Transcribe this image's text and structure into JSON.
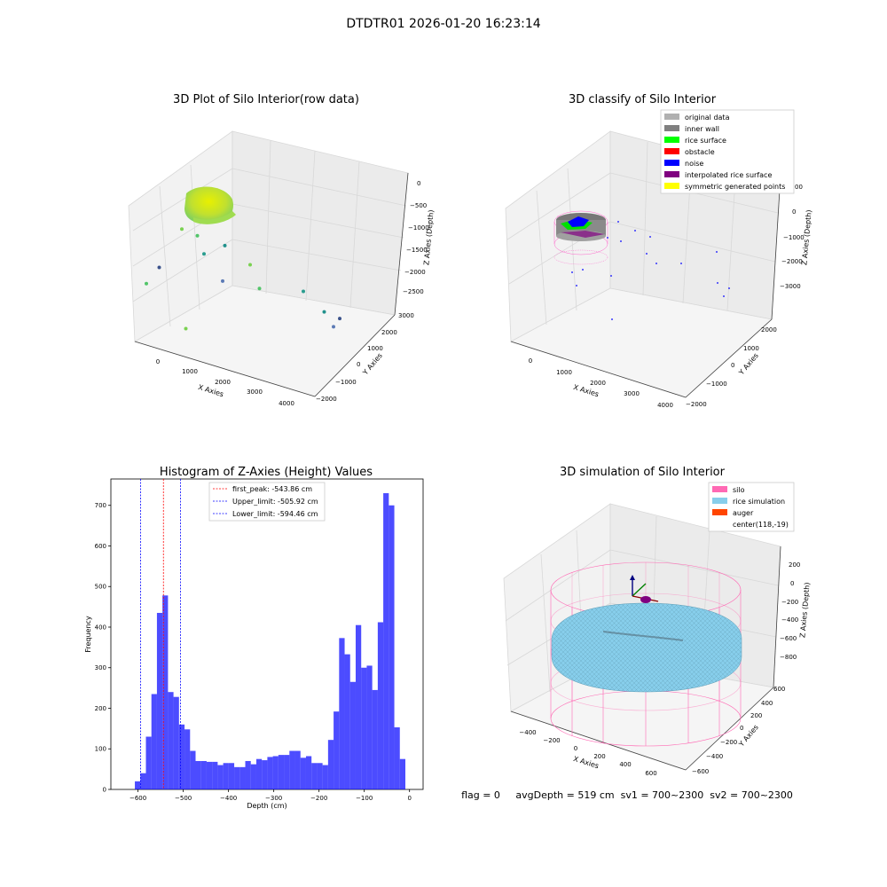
{
  "suptitle": "DTDTR01 2026-01-20 16:23:14",
  "footer": "flag = 0     avgDepth = 519 cm  sv1 = 700~2300  sv2 = 700~2300",
  "chart_data": [
    {
      "type": "scatter3d",
      "title": "3D Plot of Silo Interior(row data)",
      "xlabel": "X Axies",
      "ylabel": "Y Axies",
      "zlabel": "Z Axies (Depth)",
      "x_ticks": [
        "0",
        "1000",
        "2000",
        "3000",
        "4000"
      ],
      "y_ticks": [
        "3000",
        "2000",
        "1000",
        "0",
        "−1000",
        "−2000"
      ],
      "z_ticks": [
        "0",
        "−500",
        "−1000",
        "−1500",
        "−2000",
        "−2500"
      ],
      "colormap": "viridis",
      "cluster": {
        "x": [
          -500,
          800
        ],
        "y": [
          -300,
          900
        ],
        "z": [
          -1200,
          -400
        ]
      },
      "points": [
        {
          "x": 600,
          "y": 300,
          "z": -1000
        },
        {
          "x": 900,
          "y": 500,
          "z": -1100
        },
        {
          "x": 1200,
          "y": 200,
          "z": -1300
        },
        {
          "x": 1500,
          "y": 700,
          "z": -1200
        },
        {
          "x": 300,
          "y": -300,
          "z": -1600
        },
        {
          "x": 1800,
          "y": -100,
          "z": -1600
        },
        {
          "x": 2000,
          "y": 1000,
          "z": -1500
        },
        {
          "x": 2500,
          "y": 400,
          "z": -1700
        },
        {
          "x": 3200,
          "y": 1300,
          "z": -1800
        },
        {
          "x": 3500,
          "y": 1800,
          "z": -2200
        },
        {
          "x": 3800,
          "y": 2000,
          "z": -2300
        },
        {
          "x": 3600,
          "y": 2100,
          "z": -2500
        },
        {
          "x": 1500,
          "y": -1500,
          "z": -2200
        },
        {
          "x": 200,
          "y": -800,
          "z": -1800
        }
      ]
    },
    {
      "type": "scatter3d",
      "title": "3D classify of Silo Interior",
      "xlabel": "X Axies",
      "ylabel": "Y Axies",
      "zlabel": "Z Axies (Depth)",
      "x_ticks": [
        "0",
        "1000",
        "2000",
        "3000",
        "4000"
      ],
      "y_ticks": [
        "2000",
        "1000",
        "0",
        "−1000",
        "−2000"
      ],
      "z_ticks": [
        "0",
        "−1000",
        "−2000",
        "−3000"
      ],
      "legend": [
        {
          "label": "original data",
          "color": "#b0b0b0"
        },
        {
          "label": "inner wall",
          "color": "#808080"
        },
        {
          "label": "rice surface",
          "color": "#00ff00"
        },
        {
          "label": "obstacle",
          "color": "#ff0000"
        },
        {
          "label": "noise",
          "color": "#0000ff"
        },
        {
          "label": "interpolated rice surface",
          "color": "#800080"
        },
        {
          "label": "symmetric generated points",
          "color": "#ffff00"
        }
      ],
      "legend_position": "top-right",
      "legend_overflow_tick": "00"
    },
    {
      "type": "bar",
      "title": "Histogram of Z-Axies (Height) Values",
      "xlabel": "Depth (cm)",
      "ylabel": "Frequency",
      "xlim": [
        -660,
        30
      ],
      "ylim": [
        0,
        765
      ],
      "x_ticks": [
        -600,
        -500,
        -400,
        -300,
        -200,
        -100,
        0
      ],
      "y_ticks": [
        0,
        100,
        200,
        300,
        400,
        500,
        600,
        700
      ],
      "bar_color": "#0000ff",
      "bin_start": -607,
      "bin_width": 12.2,
      "values": [
        20,
        40,
        130,
        235,
        435,
        478,
        240,
        228,
        160,
        148,
        95,
        70,
        70,
        68,
        68,
        60,
        65,
        65,
        55,
        55,
        70,
        62,
        75,
        72,
        80,
        82,
        85,
        85,
        95,
        95,
        78,
        82,
        65,
        65,
        60,
        122,
        192,
        373,
        333,
        265,
        405,
        300,
        305,
        245,
        412,
        730,
        700,
        153,
        75
      ],
      "vlines": [
        {
          "label": "first_peak: -543.86 cm",
          "x": -543.86,
          "color": "#ff0000"
        },
        {
          "label": "Upper_limit: -505.92 cm",
          "x": -505.92,
          "color": "#0000ff"
        },
        {
          "label": "Lower_limit: -594.46 cm",
          "x": -594.46,
          "color": "#0000ff"
        }
      ],
      "legend_position": "top"
    },
    {
      "type": "surface3d",
      "title": "3D simulation of Silo Interior",
      "xlabel": "X Axies",
      "ylabel": "Y Axies",
      "zlabel": "Z Axies (Depth)",
      "x_ticks": [
        "−400",
        "−200",
        "0",
        "200",
        "400",
        "600"
      ],
      "y_ticks": [
        "600",
        "400",
        "200",
        "0",
        "−200",
        "−400",
        "−600"
      ],
      "z_ticks": [
        "200",
        "0",
        "−200",
        "−400",
        "−600",
        "−800"
      ],
      "legend": [
        {
          "label": "silo",
          "color": "#ff69b4"
        },
        {
          "label": "rice simulation",
          "color": "#87ceeb"
        },
        {
          "label": "auger",
          "color": "#ff4500"
        },
        {
          "label": "center(118,-19)",
          "color": ""
        }
      ],
      "legend_position": "top-right"
    }
  ]
}
